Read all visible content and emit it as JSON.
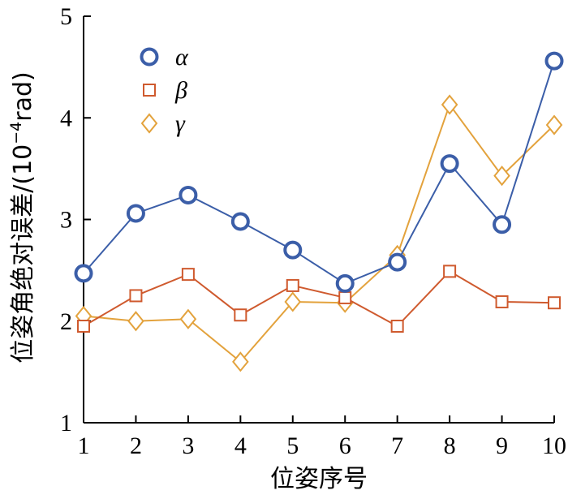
{
  "chart_data": {
    "type": "line",
    "xlabel": "位姿序号",
    "ylabel_main": "位姿角绝对误差/(10",
    "ylabel_exp": "−4",
    "ylabel_unit": "rad)",
    "x": [
      1,
      2,
      3,
      4,
      5,
      6,
      7,
      8,
      9,
      10
    ],
    "xlim": [
      1,
      10
    ],
    "ylim": [
      1,
      5
    ],
    "xticks": [
      "1",
      "2",
      "3",
      "4",
      "5",
      "6",
      "7",
      "8",
      "9",
      "10"
    ],
    "yticks": [
      "1",
      "2",
      "3",
      "4",
      "5"
    ],
    "grid": false,
    "legend_position": "top-left",
    "series": [
      {
        "name": "α",
        "marker": "circle",
        "color": "#3b5ea8",
        "values": [
          2.47,
          3.06,
          3.24,
          2.98,
          2.7,
          2.37,
          2.58,
          3.55,
          2.95,
          4.56
        ]
      },
      {
        "name": "β",
        "marker": "square",
        "color": "#cf5a2e",
        "values": [
          1.95,
          2.25,
          2.46,
          2.06,
          2.35,
          2.23,
          1.95,
          2.49,
          2.19,
          2.18
        ]
      },
      {
        "name": "γ",
        "marker": "diamond",
        "color": "#e3a23c",
        "values": [
          2.05,
          2.0,
          2.02,
          1.6,
          2.19,
          2.18,
          2.65,
          4.13,
          3.43,
          3.93
        ]
      }
    ]
  }
}
